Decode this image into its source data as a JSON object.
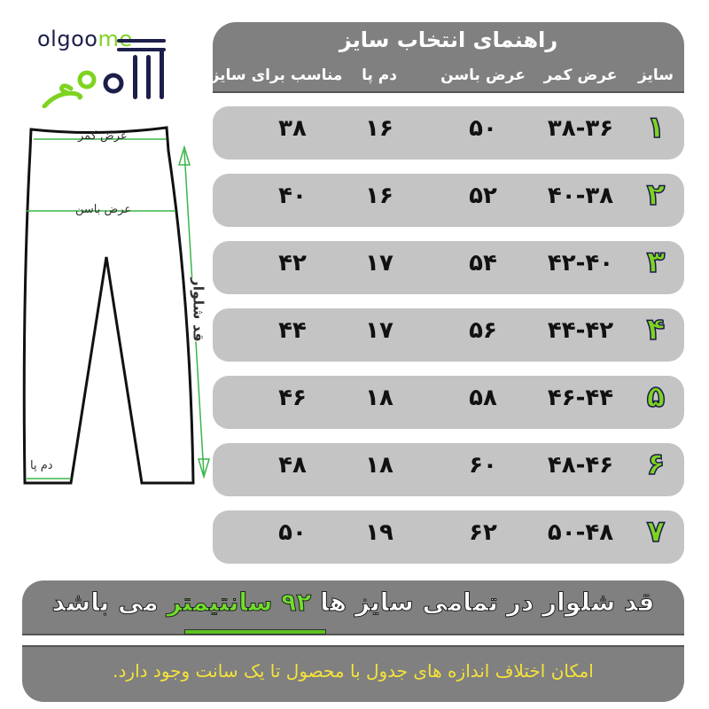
{
  "logo": {
    "latin_part1": "olgoo",
    "latin_part2": "me",
    "persian": "الگومی"
  },
  "colors": {
    "header_bg": "#808080",
    "row_bg": "#c5c4c5",
    "accent_green": "#7ed321",
    "note_yellow": "#f5e23a",
    "logo_navy": "#1c1f4a"
  },
  "diagram": {
    "waist_label": "عرض کمر",
    "hip_label": "عرض باسن",
    "length_label": "قد شلوار",
    "hem_label": "دم پا"
  },
  "table": {
    "title": "راهنمای انتخاب سایز",
    "columns": [
      "سایز",
      "عرض کمر",
      "عرض باسن",
      "دم پا",
      "مناسب برای سایز"
    ],
    "rows": [
      {
        "size": "۱",
        "waist": "۳۸-۳۶",
        "hip": "۵۰",
        "hem": "۱۶",
        "fit": "۳۸"
      },
      {
        "size": "۲",
        "waist": "۴۰-۳۸",
        "hip": "۵۲",
        "hem": "۱۶",
        "fit": "۴۰"
      },
      {
        "size": "۳",
        "waist": "۴۲-۴۰",
        "hip": "۵۴",
        "hem": "۱۷",
        "fit": "۴۲"
      },
      {
        "size": "۴",
        "waist": "۴۴-۴۲",
        "hip": "۵۶",
        "hem": "۱۷",
        "fit": "۴۴"
      },
      {
        "size": "۵",
        "waist": "۴۶-۴۴",
        "hip": "۵۸",
        "hem": "۱۸",
        "fit": "۴۶"
      },
      {
        "size": "۶",
        "waist": "۴۸-۴۶",
        "hip": "۶۰",
        "hem": "۱۸",
        "fit": "۴۸"
      },
      {
        "size": "۷",
        "waist": "۵۰-۴۸",
        "hip": "۶۲",
        "hem": "۱۹",
        "fit": "۵۰"
      }
    ]
  },
  "length_note": {
    "part1": "قد شلوار در تمامی سایز ها",
    "value": "۹۲",
    "unit": "سانتیمتر",
    "part2": "می باشد"
  },
  "tolerance_note": "امکان اختلاف اندازه های جدول با محصول تا یک سانت وجود دارد."
}
